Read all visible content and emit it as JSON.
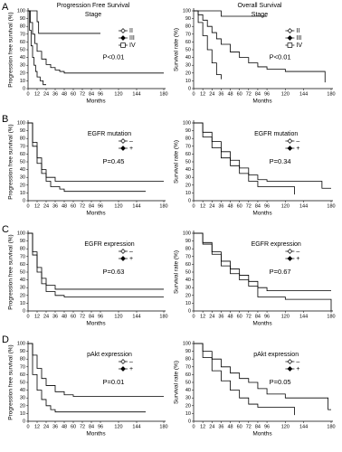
{
  "chart_data": [
    {
      "type": "line",
      "panel_label": "A",
      "title": "Progression Free Survival",
      "legend_title": "Stage",
      "ylabel": "Progression free survival (%)",
      "xlabel": "Months",
      "annotation": "P<0.01",
      "xlim": [
        0,
        180
      ],
      "ylim": [
        0,
        100
      ],
      "xticks": [
        0,
        12,
        24,
        36,
        48,
        60,
        72,
        84,
        96,
        120,
        144,
        180
      ],
      "yticks": [
        0,
        10,
        20,
        30,
        40,
        50,
        60,
        70,
        80,
        90,
        100
      ],
      "series": [
        {
          "name": "II",
          "color": "#000000",
          "marker": "open-diamond",
          "x": [
            0,
            6,
            12,
            14,
            96
          ],
          "values": [
            100,
            100,
            86,
            71,
            71
          ]
        },
        {
          "name": "III",
          "color": "#000000",
          "marker": "filled-diamond",
          "x": [
            0,
            3,
            6,
            9,
            12,
            18,
            24,
            30,
            36,
            42,
            48,
            180
          ],
          "values": [
            100,
            85,
            70,
            58,
            48,
            38,
            31,
            27,
            24,
            22,
            20,
            20
          ]
        },
        {
          "name": "IV",
          "color": "#000000",
          "marker": "open-square",
          "x": [
            0,
            2,
            4,
            6,
            8,
            10,
            12,
            16,
            20,
            24
          ],
          "values": [
            100,
            75,
            55,
            40,
            30,
            22,
            15,
            10,
            5,
            5
          ]
        }
      ]
    },
    {
      "type": "line",
      "title": "Overall Survival",
      "legend_title": "Stage",
      "ylabel": "Survival rate (%)",
      "xlabel": "Months",
      "annotation": "P<0.01",
      "xlim": [
        0,
        180
      ],
      "ylim": [
        0,
        100
      ],
      "xticks": [
        0,
        12,
        24,
        36,
        48,
        60,
        72,
        84,
        96,
        120,
        144,
        180
      ],
      "yticks": [
        0,
        10,
        20,
        30,
        40,
        50,
        60,
        70,
        80,
        90,
        100
      ],
      "series": [
        {
          "name": "II",
          "color": "#000000",
          "marker": "open-diamond",
          "x": [
            0,
            36,
            96
          ],
          "values": [
            100,
            93,
            93
          ]
        },
        {
          "name": "III",
          "color": "#000000",
          "marker": "filled-diamond",
          "x": [
            0,
            6,
            12,
            18,
            24,
            30,
            36,
            48,
            60,
            72,
            84,
            96,
            120,
            168,
            172
          ],
          "values": [
            100,
            95,
            88,
            80,
            72,
            64,
            57,
            47,
            40,
            33,
            28,
            25,
            22,
            22,
            8
          ]
        },
        {
          "name": "IV",
          "color": "#000000",
          "marker": "open-square",
          "x": [
            0,
            6,
            12,
            18,
            24,
            30,
            36
          ],
          "values": [
            100,
            85,
            68,
            50,
            33,
            18,
            12
          ]
        }
      ]
    },
    {
      "type": "line",
      "panel_label": "B",
      "title": "EGFR mutation",
      "ylabel": "Progression free survival (%)",
      "xlabel": "Months",
      "annotation": "P=0.45",
      "xlim": [
        0,
        180
      ],
      "ylim": [
        0,
        100
      ],
      "xticks": [
        0,
        12,
        24,
        36,
        48,
        60,
        72,
        84,
        96,
        120,
        144,
        180
      ],
      "yticks": [
        0,
        10,
        20,
        30,
        40,
        50,
        60,
        70,
        80,
        90,
        100
      ],
      "series": [
        {
          "name": "–",
          "color": "#000000",
          "marker": "open-diamond",
          "x": [
            0,
            6,
            12,
            18,
            24,
            36,
            48,
            60,
            180
          ],
          "values": [
            100,
            75,
            55,
            40,
            30,
            25,
            25,
            25,
            25
          ]
        },
        {
          "name": "+",
          "color": "#000000",
          "marker": "filled-diamond",
          "x": [
            0,
            6,
            12,
            18,
            24,
            30,
            42,
            48,
            156
          ],
          "values": [
            100,
            70,
            48,
            35,
            25,
            18,
            15,
            12,
            12
          ]
        }
      ]
    },
    {
      "type": "line",
      "title": "EGFR mutation",
      "ylabel": "Survival rate (%)",
      "xlabel": "Months",
      "annotation": "P=0.34",
      "xlim": [
        0,
        180
      ],
      "ylim": [
        0,
        100
      ],
      "xticks": [
        0,
        12,
        24,
        36,
        48,
        60,
        72,
        84,
        96,
        120,
        144,
        180
      ],
      "yticks": [
        0,
        10,
        20,
        30,
        40,
        50,
        60,
        70,
        80,
        90,
        100
      ],
      "series": [
        {
          "name": "–",
          "color": "#000000",
          "marker": "open-diamond",
          "x": [
            0,
            12,
            24,
            36,
            48,
            60,
            72,
            84,
            96,
            120,
            168,
            180
          ],
          "values": [
            100,
            88,
            76,
            63,
            52,
            42,
            33,
            27,
            25,
            25,
            16,
            16
          ]
        },
        {
          "name": "+",
          "color": "#000000",
          "marker": "filled-diamond",
          "x": [
            0,
            12,
            24,
            36,
            48,
            60,
            72,
            84,
            132
          ],
          "values": [
            100,
            82,
            68,
            55,
            45,
            35,
            25,
            18,
            8
          ]
        }
      ]
    },
    {
      "type": "line",
      "panel_label": "C",
      "title": "EGFR expression",
      "ylabel": "Progression free survival (%)",
      "xlabel": "Months",
      "annotation": "P=0.63",
      "xlim": [
        0,
        180
      ],
      "ylim": [
        0,
        100
      ],
      "xticks": [
        0,
        12,
        24,
        36,
        48,
        60,
        72,
        84,
        96,
        120,
        144,
        180
      ],
      "yticks": [
        0,
        10,
        20,
        30,
        40,
        50,
        60,
        70,
        80,
        90,
        100
      ],
      "series": [
        {
          "name": "–",
          "color": "#000000",
          "marker": "open-diamond",
          "x": [
            0,
            6,
            12,
            18,
            24,
            36,
            48,
            180
          ],
          "values": [
            100,
            72,
            50,
            35,
            25,
            20,
            18,
            18
          ]
        },
        {
          "name": "+",
          "color": "#000000",
          "marker": "filled-diamond",
          "x": [
            0,
            6,
            12,
            18,
            24,
            36,
            48,
            180
          ],
          "values": [
            100,
            76,
            56,
            42,
            33,
            28,
            28,
            28
          ]
        }
      ]
    },
    {
      "type": "line",
      "title": "EGFR expression",
      "ylabel": "Survival rate (%)",
      "xlabel": "Months",
      "annotation": "P=0.67",
      "xlim": [
        0,
        180
      ],
      "ylim": [
        0,
        100
      ],
      "xticks": [
        0,
        12,
        24,
        36,
        48,
        60,
        72,
        84,
        96,
        120,
        144,
        180
      ],
      "yticks": [
        0,
        10,
        20,
        30,
        40,
        50,
        60,
        70,
        80,
        90,
        100
      ],
      "series": [
        {
          "name": "–",
          "color": "#000000",
          "marker": "open-diamond",
          "x": [
            0,
            12,
            24,
            36,
            48,
            60,
            72,
            84,
            120,
            176,
            180
          ],
          "values": [
            100,
            86,
            73,
            58,
            48,
            40,
            32,
            18,
            15,
            15,
            0
          ]
        },
        {
          "name": "+",
          "color": "#000000",
          "marker": "filled-diamond",
          "x": [
            0,
            12,
            24,
            36,
            48,
            60,
            72,
            84,
            96,
            180
          ],
          "values": [
            100,
            88,
            76,
            64,
            54,
            46,
            38,
            30,
            26,
            26
          ]
        }
      ]
    },
    {
      "type": "line",
      "panel_label": "D",
      "title": "pAkt expression",
      "ylabel": "Progression free survival (%)",
      "xlabel": "Months",
      "annotation": "P=0.01",
      "xlim": [
        0,
        180
      ],
      "ylim": [
        0,
        100
      ],
      "xticks": [
        0,
        12,
        24,
        36,
        48,
        60,
        72,
        84,
        96,
        120,
        144,
        180
      ],
      "yticks": [
        0,
        10,
        20,
        30,
        40,
        50,
        60,
        70,
        80,
        90,
        100
      ],
      "series": [
        {
          "name": "–",
          "color": "#000000",
          "marker": "open-diamond",
          "x": [
            0,
            6,
            12,
            18,
            24,
            36,
            48,
            60,
            180
          ],
          "values": [
            100,
            85,
            68,
            55,
            46,
            38,
            34,
            32,
            32
          ]
        },
        {
          "name": "+",
          "color": "#000000",
          "marker": "filled-diamond",
          "x": [
            0,
            6,
            12,
            18,
            24,
            30,
            36,
            48,
            156
          ],
          "values": [
            100,
            60,
            40,
            28,
            20,
            15,
            12,
            12,
            12
          ]
        }
      ]
    },
    {
      "type": "line",
      "title": "pAkt expression",
      "ylabel": "Survival rate (%)",
      "xlabel": "Months",
      "annotation": "P=0.05",
      "xlim": [
        0,
        180
      ],
      "ylim": [
        0,
        100
      ],
      "xticks": [
        0,
        12,
        24,
        36,
        48,
        60,
        72,
        84,
        96,
        120,
        144,
        180
      ],
      "yticks": [
        0,
        10,
        20,
        30,
        40,
        50,
        60,
        70,
        80,
        90,
        100
      ],
      "series": [
        {
          "name": "–",
          "color": "#000000",
          "marker": "open-diamond",
          "x": [
            0,
            12,
            24,
            36,
            48,
            60,
            72,
            84,
            96,
            120,
            176,
            180
          ],
          "values": [
            100,
            90,
            80,
            70,
            62,
            55,
            50,
            42,
            35,
            30,
            15,
            15
          ]
        },
        {
          "name": "+",
          "color": "#000000",
          "marker": "filled-diamond",
          "x": [
            0,
            12,
            24,
            36,
            48,
            60,
            72,
            84,
            132
          ],
          "values": [
            100,
            82,
            65,
            52,
            40,
            30,
            22,
            18,
            8
          ]
        }
      ]
    }
  ]
}
